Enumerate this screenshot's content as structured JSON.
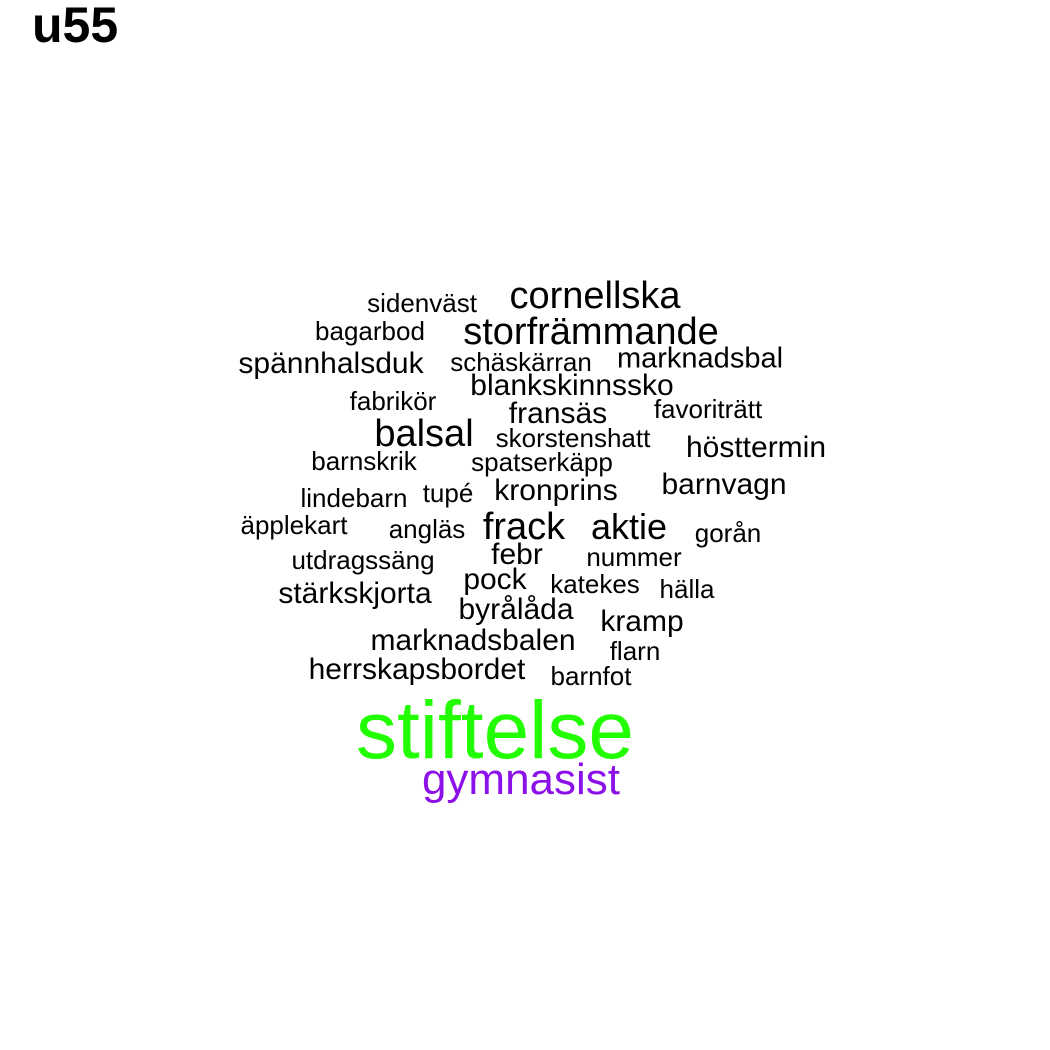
{
  "title": "u55",
  "colors": {
    "default": "#000000",
    "highlight_green": "#22ff00",
    "highlight_purple": "#8c11e8"
  },
  "words": [
    {
      "text": "cornellska",
      "size": "large",
      "color": "default"
    },
    {
      "text": "sidenväst",
      "size": "small",
      "color": "default"
    },
    {
      "text": "bagarbod",
      "size": "small",
      "color": "default"
    },
    {
      "text": "storfrämmande",
      "size": "large",
      "color": "default"
    },
    {
      "text": "spännhalsduk",
      "size": "medium",
      "color": "default"
    },
    {
      "text": "schäskärran",
      "size": "small",
      "color": "default"
    },
    {
      "text": "marknadsbal",
      "size": "medium",
      "color": "default"
    },
    {
      "text": "blankskinnssko",
      "size": "medium",
      "color": "default"
    },
    {
      "text": "fabrikör",
      "size": "small",
      "color": "default"
    },
    {
      "text": "fransäs",
      "size": "medium",
      "color": "default"
    },
    {
      "text": "favoriträtt",
      "size": "small",
      "color": "default"
    },
    {
      "text": "balsal",
      "size": "large",
      "color": "default"
    },
    {
      "text": "skorstenshatt",
      "size": "small",
      "color": "default"
    },
    {
      "text": "hösttermin",
      "size": "medium",
      "color": "default"
    },
    {
      "text": "barnskrik",
      "size": "small",
      "color": "default"
    },
    {
      "text": "spatserkäpp",
      "size": "small",
      "color": "default"
    },
    {
      "text": "lindebarn",
      "size": "small",
      "color": "default"
    },
    {
      "text": "tupé",
      "size": "small",
      "color": "default"
    },
    {
      "text": "kronprins",
      "size": "medium",
      "color": "default"
    },
    {
      "text": "barnvagn",
      "size": "medium",
      "color": "default"
    },
    {
      "text": "äpplekart",
      "size": "small",
      "color": "default"
    },
    {
      "text": "angläs",
      "size": "small",
      "color": "default"
    },
    {
      "text": "frack",
      "size": "large",
      "color": "default"
    },
    {
      "text": "aktie",
      "size": "large",
      "color": "default"
    },
    {
      "text": "gorån",
      "size": "small",
      "color": "default"
    },
    {
      "text": "utdragssäng",
      "size": "small",
      "color": "default"
    },
    {
      "text": "febr",
      "size": "medium",
      "color": "default"
    },
    {
      "text": "nummer",
      "size": "small",
      "color": "default"
    },
    {
      "text": "pock",
      "size": "medium",
      "color": "default"
    },
    {
      "text": "stärkskjorta",
      "size": "medium",
      "color": "default"
    },
    {
      "text": "katekes",
      "size": "small",
      "color": "default"
    },
    {
      "text": "hälla",
      "size": "small",
      "color": "default"
    },
    {
      "text": "byrålåda",
      "size": "medium",
      "color": "default"
    },
    {
      "text": "kramp",
      "size": "medium",
      "color": "default"
    },
    {
      "text": "marknadsbalen",
      "size": "medium",
      "color": "default"
    },
    {
      "text": "flarn",
      "size": "small",
      "color": "default"
    },
    {
      "text": "herrskapsbordet",
      "size": "medium",
      "color": "default"
    },
    {
      "text": "barnfot",
      "size": "small",
      "color": "default"
    },
    {
      "text": "stiftelse",
      "size": "xlarge",
      "color": "highlight_green"
    },
    {
      "text": "gymnasist",
      "size": "xmedium",
      "color": "highlight_purple"
    }
  ]
}
